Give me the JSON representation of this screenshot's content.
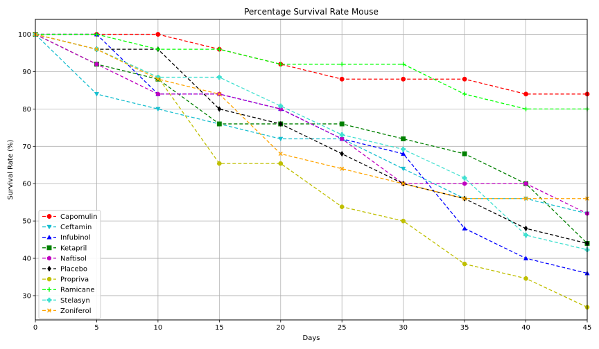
{
  "chart_data": {
    "type": "line",
    "title": "Percentage Survival Rate Mouse",
    "xlabel": "Days",
    "ylabel": "Survival Rate (%)",
    "xlim": [
      0,
      45
    ],
    "ylim": [
      23.5,
      104
    ],
    "x": [
      0,
      5,
      10,
      15,
      20,
      25,
      30,
      35,
      40,
      45
    ],
    "xticks": [
      0,
      5,
      10,
      15,
      20,
      25,
      30,
      35,
      40,
      45
    ],
    "yticks": [
      30,
      40,
      50,
      60,
      70,
      80,
      90,
      100
    ],
    "grid": true,
    "legend_position": "lower-left",
    "series": [
      {
        "name": "Capomulin",
        "color": "#ff0000",
        "marker": "circle",
        "values": [
          100,
          100,
          100,
          96,
          92,
          88,
          88,
          88,
          84,
          84
        ]
      },
      {
        "name": "Ceftamin",
        "color": "#17becf",
        "marker": "triangle-down",
        "values": [
          100,
          84,
          80,
          76,
          72,
          72,
          64,
          56,
          56,
          52
        ]
      },
      {
        "name": "Infubinol",
        "color": "#0000ff",
        "marker": "triangle-up",
        "values": [
          100,
          100,
          84,
          84,
          80,
          72,
          68,
          48,
          40,
          36
        ]
      },
      {
        "name": "Ketapril",
        "color": "#008000",
        "marker": "square",
        "values": [
          100,
          92,
          88,
          76,
          76,
          76,
          72,
          68,
          60,
          44
        ]
      },
      {
        "name": "Naftisol",
        "color": "#bf00bf",
        "marker": "hexagon",
        "values": [
          100,
          92,
          84,
          84,
          80,
          72,
          60,
          60,
          60,
          52
        ]
      },
      {
        "name": "Placebo",
        "color": "#000000",
        "marker": "diamond",
        "values": [
          100,
          96,
          96,
          80,
          76,
          68,
          60,
          56,
          48,
          44
        ]
      },
      {
        "name": "Propriva",
        "color": "#bfbf00",
        "marker": "octagon",
        "values": [
          100,
          96,
          88.5,
          65.4,
          65.4,
          53.8,
          50,
          38.5,
          34.6,
          26.9
        ]
      },
      {
        "name": "Ramicane",
        "color": "#00ff00",
        "marker": "plus",
        "values": [
          100,
          100,
          96,
          96,
          92,
          92,
          92,
          84,
          80,
          80
        ]
      },
      {
        "name": "Stelasyn",
        "color": "#40e0d0",
        "marker": "plus-filled",
        "values": [
          100,
          96,
          88.5,
          88.5,
          80.8,
          73.1,
          69.2,
          61.5,
          46.2,
          42.3
        ]
      },
      {
        "name": "Zoniferol",
        "color": "#ffa500",
        "marker": "x",
        "values": [
          100,
          96,
          88,
          84,
          68,
          64,
          60,
          56,
          56,
          56
        ]
      }
    ]
  }
}
